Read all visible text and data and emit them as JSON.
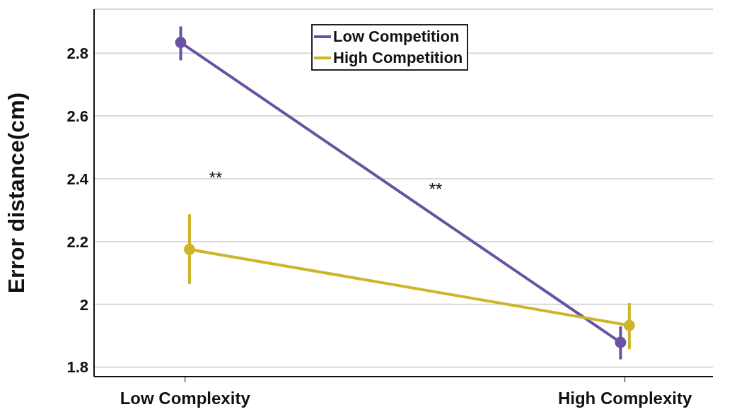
{
  "chart_data": {
    "type": "line",
    "ylabel": "Error distance(cm)",
    "categories": [
      "Low Complexity",
      "High Complexity"
    ],
    "series": [
      {
        "name": "Low Competition",
        "color": "#6a52a3",
        "values": [
          2.834,
          1.879
        ],
        "errors": [
          [
            2.777,
            2.885
          ],
          [
            1.825,
            1.93
          ]
        ]
      },
      {
        "name": "High Competition",
        "color": "#cdb52a",
        "values": [
          2.175,
          1.933
        ],
        "errors": [
          [
            2.065,
            2.287
          ],
          [
            1.857,
            2.004
          ]
        ]
      }
    ],
    "annotations": [
      "**",
      "**"
    ],
    "ylim": [
      1.77,
      2.94
    ],
    "yticks": [
      {
        "value": 1.8,
        "label": "1.8"
      },
      {
        "value": 2,
        "label": "2"
      },
      {
        "value": 2.2,
        "label": "2.2"
      },
      {
        "value": 2.4,
        "label": "2.4"
      },
      {
        "value": 2.6,
        "label": "2.6"
      },
      {
        "value": 2.8,
        "label": "2.8"
      }
    ],
    "grid": "y",
    "legend": "top",
    "marker": "circle",
    "line_style": "solid"
  }
}
